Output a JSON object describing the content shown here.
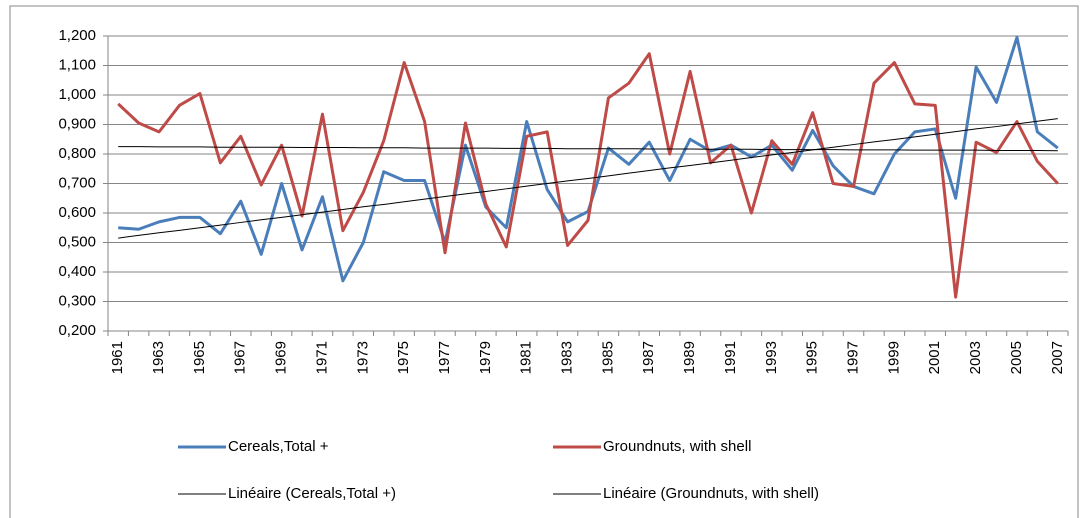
{
  "chart_data": {
    "type": "line",
    "categories": [
      "1961",
      null,
      "1963",
      null,
      "1965",
      null,
      "1967",
      null,
      "1969",
      null,
      "1971",
      null,
      "1973",
      null,
      "1975",
      null,
      "1977",
      null,
      "1979",
      null,
      "1981",
      null,
      "1983",
      null,
      "1985",
      null,
      "1987",
      null,
      "1989",
      null,
      "1991",
      null,
      "1993",
      null,
      "1995",
      null,
      "1997",
      null,
      "1999",
      null,
      "2001",
      null,
      "2003",
      null,
      "2005",
      null,
      "2007"
    ],
    "series": [
      {
        "name": "Cereals,Total +",
        "color": "#4a7ebb",
        "width": 3,
        "values": [
          0.55,
          0.545,
          0.57,
          0.585,
          0.585,
          0.53,
          0.64,
          0.46,
          0.7,
          0.475,
          0.655,
          0.37,
          0.5,
          0.74,
          0.71,
          0.71,
          0.5,
          0.83,
          0.62,
          0.55,
          0.91,
          0.68,
          0.57,
          0.605,
          0.82,
          0.765,
          0.84,
          0.71,
          0.85,
          0.81,
          0.83,
          0.79,
          0.83,
          0.745,
          0.88,
          0.76,
          0.69,
          0.665,
          0.8,
          0.875,
          0.885,
          0.65,
          1.095,
          0.975,
          1.195,
          0.875,
          0.82
        ]
      },
      {
        "name": "Groundnuts, with shell",
        "color": "#be4b48",
        "width": 3,
        "values": [
          0.97,
          0.905,
          0.875,
          0.965,
          1.005,
          0.77,
          0.86,
          0.695,
          0.83,
          0.59,
          0.935,
          0.54,
          0.67,
          0.845,
          1.11,
          0.91,
          0.465,
          0.905,
          0.63,
          0.485,
          0.86,
          0.875,
          0.49,
          0.575,
          0.99,
          1.04,
          1.14,
          0.8,
          1.08,
          0.77,
          0.83,
          0.6,
          0.845,
          0.765,
          0.94,
          0.7,
          0.69,
          1.04,
          1.11,
          0.97,
          0.965,
          0.315,
          0.84,
          0.805,
          0.91,
          0.775,
          0.7
        ]
      },
      {
        "name": "Linéaire (Cereals,Total +)",
        "color": "#000000",
        "width": 1,
        "values": [
          0.515,
          0.524,
          0.533,
          0.541,
          0.55,
          0.559,
          0.568,
          0.577,
          0.585,
          0.594,
          0.603,
          0.612,
          0.621,
          0.629,
          0.638,
          0.647,
          0.656,
          0.665,
          0.673,
          0.682,
          0.691,
          0.7,
          0.709,
          0.717,
          0.726,
          0.735,
          0.744,
          0.753,
          0.761,
          0.77,
          0.779,
          0.788,
          0.797,
          0.805,
          0.814,
          0.823,
          0.832,
          0.841,
          0.849,
          0.858,
          0.867,
          0.876,
          0.885,
          0.893,
          0.902,
          0.911,
          0.92
        ]
      },
      {
        "name": "Linéaire (Groundnuts, with shell)",
        "color": "#000000",
        "width": 1,
        "values": [
          0.825,
          0.825,
          0.824,
          0.824,
          0.824,
          0.823,
          0.823,
          0.823,
          0.823,
          0.822,
          0.822,
          0.822,
          0.821,
          0.821,
          0.821,
          0.82,
          0.82,
          0.82,
          0.82,
          0.819,
          0.819,
          0.819,
          0.818,
          0.818,
          0.818,
          0.818,
          0.817,
          0.817,
          0.817,
          0.816,
          0.816,
          0.816,
          0.815,
          0.815,
          0.815,
          0.815,
          0.814,
          0.814,
          0.814,
          0.813,
          0.813,
          0.813,
          0.813,
          0.812,
          0.812,
          0.812,
          0.811
        ]
      }
    ],
    "ylim": [
      0.2,
      1.2
    ],
    "yticks": [
      {
        "value": 0.2,
        "label": "0,200"
      },
      {
        "value": 0.3,
        "label": "0,300"
      },
      {
        "value": 0.4,
        "label": "0,400"
      },
      {
        "value": 0.5,
        "label": "0,500"
      },
      {
        "value": 0.6,
        "label": "0,600"
      },
      {
        "value": 0.7,
        "label": "0,700"
      },
      {
        "value": 0.8,
        "label": "0,800"
      },
      {
        "value": 0.9,
        "label": "0,900"
      },
      {
        "value": 1.0,
        "label": "1,000"
      },
      {
        "value": 1.1,
        "label": "1,100"
      },
      {
        "value": 1.2,
        "label": "1,200"
      }
    ],
    "grid": true
  }
}
